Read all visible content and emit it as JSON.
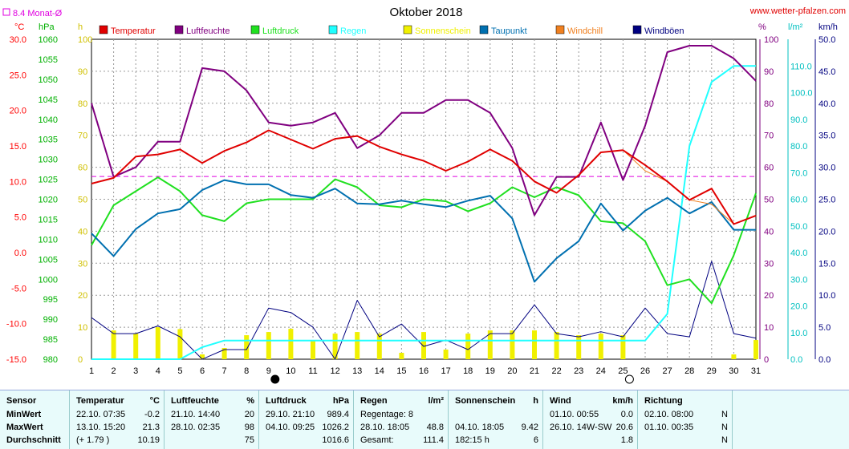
{
  "header": {
    "title": "Oktober 2018",
    "source": "www.wetter-pfalzen.com",
    "avg_note": "8.4 Monat-Ø"
  },
  "axis_units": {
    "celsius": "°C",
    "hpa": "hPa",
    "hours": "h",
    "percent": "%",
    "rain": "l/m²",
    "speed": "km/h"
  },
  "colors": {
    "temperatur": "#e00000",
    "luftfeuchte": "#800080",
    "luftdruck": "#20e020",
    "regen": "#20ffff",
    "sonnenschein": "#f0f000",
    "taupunkt": "#0070b0",
    "windchill": "#f08020",
    "windboeen": "#000080",
    "avg_line": "#e000e0",
    "celsius_axis": "#ff0000",
    "hpa_axis": "#00b000",
    "hours_axis": "#d0c000",
    "percent_axis": "#800080",
    "rain_axis": "#00c0c0",
    "speed_axis": "#000080"
  },
  "chart_data": {
    "type": "line",
    "title": "Oktober 2018",
    "x": [
      1,
      2,
      3,
      4,
      5,
      6,
      7,
      8,
      9,
      10,
      11,
      12,
      13,
      14,
      15,
      16,
      17,
      18,
      19,
      20,
      21,
      22,
      23,
      24,
      25,
      26,
      27,
      28,
      29,
      30,
      31
    ],
    "axes": {
      "celsius": {
        "label": "°C",
        "range": [
          -15,
          30
        ],
        "ticks": [
          "30.0",
          "25.0",
          "20.0",
          "15.0",
          "10.0",
          "5.0",
          "0.0",
          "-5.0",
          "-10.0",
          "-15.0"
        ]
      },
      "hpa": {
        "label": "hPa",
        "range": [
          980,
          1060
        ],
        "ticks": [
          "1060",
          "1055",
          "1050",
          "1045",
          "1040",
          "1035",
          "1030",
          "1025",
          "1020",
          "1015",
          "1010",
          "1005",
          "1000",
          "995",
          "990",
          "985",
          "980"
        ]
      },
      "hours": {
        "label": "h",
        "range": [
          0,
          100
        ],
        "ticks": [
          "100",
          "90",
          "80",
          "70",
          "60",
          "50",
          "40",
          "30",
          "20",
          "10",
          "0"
        ]
      },
      "percent": {
        "label": "%",
        "range": [
          0,
          100
        ],
        "ticks": [
          "100",
          "90",
          "80",
          "70",
          "60",
          "50",
          "40",
          "30",
          "20",
          "10",
          "0"
        ]
      },
      "rain": {
        "label": "l/m²",
        "range": [
          0,
          120
        ],
        "ticks": [
          "110.0",
          "100.0",
          "90.0",
          "80.0",
          "70.0",
          "60.0",
          "50.0",
          "40.0",
          "30.0",
          "20.0",
          "10.0",
          "0.0"
        ]
      },
      "speed": {
        "label": "km/h",
        "range": [
          0,
          50
        ],
        "ticks": [
          "50.0",
          "45.0",
          "40.0",
          "35.0",
          "30.0",
          "25.0",
          "20.0",
          "15.0",
          "10.0",
          "5.0",
          "0.0"
        ]
      }
    },
    "series": [
      {
        "name": "Temperatur",
        "axis": "celsius",
        "values": [
          9.7,
          10.5,
          13.5,
          13.8,
          14.5,
          12.6,
          14.3,
          15.5,
          17.2,
          15.9,
          14.6,
          16.0,
          16.4,
          14.9,
          13.8,
          12.9,
          11.5,
          12.8,
          14.5,
          12.9,
          10.0,
          8.4,
          10.9,
          14.1,
          14.4,
          12.3,
          10.0,
          7.4,
          9.0,
          4.0,
          5.2
        ]
      },
      {
        "name": "Luftfeuchte",
        "axis": "percent",
        "values": [
          80,
          57,
          60,
          68,
          68,
          91,
          90,
          84,
          74,
          73,
          74,
          77,
          66,
          70,
          77,
          77,
          81,
          81,
          77,
          66,
          45,
          57,
          57,
          74,
          56,
          73,
          96,
          98,
          98,
          94,
          87
        ]
      },
      {
        "name": "Luftdruck",
        "axis": "hpa",
        "values": [
          1008.5,
          1018.5,
          1022,
          1025.5,
          1022,
          1016,
          1014.5,
          1019,
          1020,
          1020,
          1020,
          1025,
          1023,
          1018.5,
          1018,
          1020,
          1019.5,
          1017,
          1019,
          1023,
          1020.5,
          1023,
          1021,
          1014.5,
          1014,
          1009.5,
          998.5,
          1000,
          994,
          1006,
          1021.5
        ]
      },
      {
        "name": "Regen",
        "axis": "rain",
        "values": [
          0,
          0,
          0,
          0,
          0,
          4.5,
          7,
          7,
          7,
          7,
          7,
          7,
          7,
          7,
          7,
          7,
          7,
          7,
          7,
          7,
          7,
          7,
          7,
          7,
          7,
          7,
          17,
          80,
          104,
          110,
          110
        ]
      },
      {
        "name": "Sonnenschein",
        "axis": "hours",
        "values": [
          0,
          9,
          8,
          10,
          9.4,
          1.5,
          3.5,
          7.5,
          8.5,
          9.5,
          6,
          8,
          8.5,
          8,
          2,
          8.5,
          3,
          8,
          9,
          9,
          9,
          8.5,
          7.5,
          8,
          7.5,
          0,
          0,
          0,
          0,
          1.5,
          6
        ]
      },
      {
        "name": "Taupunkt",
        "axis": "celsius",
        "values": [
          2.7,
          -0.5,
          3.3,
          5.5,
          6.1,
          8.8,
          10.2,
          9.6,
          9.6,
          8.1,
          7.7,
          9.0,
          6.9,
          6.8,
          7.3,
          6.8,
          6.4,
          7.3,
          8.0,
          4.8,
          -4.1,
          -0.8,
          1.6,
          6.9,
          3.1,
          5.9,
          7.7,
          5.5,
          7.1,
          3.2,
          3.2
        ]
      },
      {
        "name": "Windchill",
        "axis": "celsius",
        "values": [
          9.7,
          10.5,
          13.5,
          13.8,
          14.5,
          12.6,
          14.3,
          15.5,
          17.2,
          15.9,
          14.6,
          16.0,
          16.4,
          14.9,
          13.8,
          12.9,
          11.5,
          12.8,
          14.5,
          12.9,
          10.0,
          8.4,
          10.9,
          14.1,
          14.4,
          11.5,
          10.0,
          7.4,
          6.8,
          4.0,
          5.2
        ]
      },
      {
        "name": "Windböen",
        "axis": "speed",
        "values": [
          6.5,
          4,
          4,
          5.2,
          3.5,
          0,
          1.5,
          1.5,
          8,
          7.3,
          5,
          0,
          9.2,
          3.5,
          5.5,
          2,
          3,
          1.5,
          4,
          4,
          8.5,
          4,
          3.5,
          4.3,
          3.5,
          8,
          4,
          3.5,
          15.3,
          4,
          3.3
        ]
      }
    ],
    "reference_line": {
      "axis": "celsius",
      "value": 10.7
    },
    "moon_markers": [
      {
        "day": 9,
        "phase": "new"
      },
      {
        "day": 25,
        "phase": "full"
      }
    ],
    "grid": true
  },
  "legend": [
    {
      "label": "Temperatur",
      "color": "#e00000"
    },
    {
      "label": "Luftfeuchte",
      "color": "#800080"
    },
    {
      "label": "Luftdruck",
      "color": "#20e020"
    },
    {
      "label": "Regen",
      "color": "#20ffff"
    },
    {
      "label": "Sonnenschein",
      "color": "#f0f000"
    },
    {
      "label": "Taupunkt",
      "color": "#0070b0"
    },
    {
      "label": "Windchill",
      "color": "#f08020"
    },
    {
      "label": "Windböen",
      "color": "#000080"
    }
  ],
  "stats": {
    "sensor": {
      "head": "Sensor",
      "rows": [
        "MinWert",
        "MaxWert",
        "Durchschnitt"
      ]
    },
    "temperatur": {
      "head": "Temperatur",
      "unit": "°C",
      "rows": [
        {
          "a": "22.10.  07:35",
          "v": "-0.2"
        },
        {
          "a": "13.10.  15:20",
          "v": "21.3"
        },
        {
          "a": "(+ 1.79 )",
          "v": "10.19"
        }
      ]
    },
    "luftfeuchte": {
      "head": "Luftfeuchte",
      "unit": "%",
      "rows": [
        {
          "a": "21.10.  14:40",
          "v": "20"
        },
        {
          "a": "28.10.  02:35",
          "v": "98"
        },
        {
          "a": "",
          "v": "75"
        }
      ]
    },
    "luftdruck": {
      "head": "Luftdruck",
      "unit": "hPa",
      "rows": [
        {
          "a": "29.10.  21:10",
          "v": "989.4"
        },
        {
          "a": "04.10.  09:25",
          "v": "1026.2"
        },
        {
          "a": "",
          "v": "1016.6"
        }
      ]
    },
    "regen": {
      "head": "Regen",
      "unit": "l/m²",
      "rows": [
        {
          "a": "Regentage: 8",
          "v": ""
        },
        {
          "a": "28.10.  18:05",
          "v": "48.8"
        },
        {
          "a": "Gesamt:",
          "v": "111.4"
        }
      ]
    },
    "sonnenschein": {
      "head": "Sonnenschein",
      "unit": "h",
      "rows": [
        {
          "a": "",
          "v": ""
        },
        {
          "a": "04.10.  18:05",
          "v": "9.42"
        },
        {
          "a": "182:15 h",
          "v": "6"
        }
      ]
    },
    "wind": {
      "head": "Wind",
      "unit": "km/h",
      "rows": [
        {
          "a": "01.10.  00:55",
          "v": "0.0"
        },
        {
          "a": "26.10.  14W-SW",
          "v": "20.6"
        },
        {
          "a": "",
          "v": "1.8"
        }
      ]
    },
    "richtung": {
      "head": "Richtung",
      "rows": [
        {
          "a": "02.10.  08:00",
          "v": "N"
        },
        {
          "a": "01.10.  00:35",
          "v": "N"
        },
        {
          "a": "",
          "v": "N"
        }
      ]
    }
  }
}
